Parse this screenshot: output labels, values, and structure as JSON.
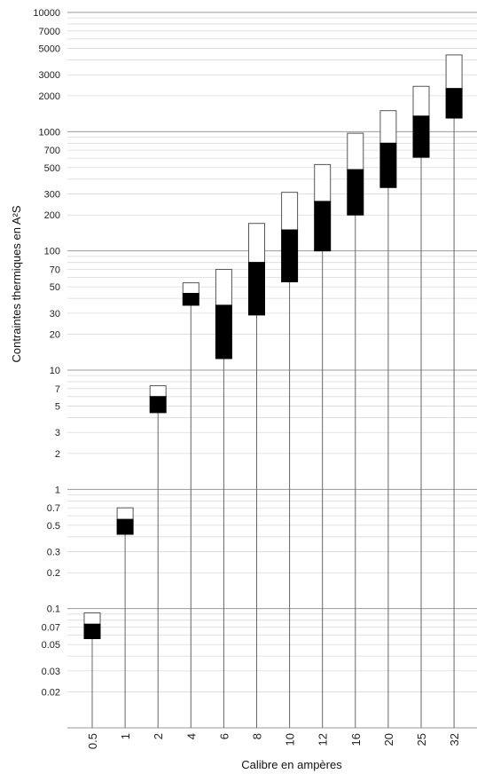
{
  "chart_data": {
    "type": "bar",
    "subtype": "floating-range-stacked",
    "xlabel": "Calibre en ampères",
    "ylabel": "Contraintes thermiques en A²S",
    "yscale": "log",
    "ylim": [
      0.01,
      10000
    ],
    "yticks": [
      {
        "value": 10000,
        "label": "10000"
      },
      {
        "value": 7000,
        "label": "7000"
      },
      {
        "value": 5000,
        "label": "5000"
      },
      {
        "value": 3000,
        "label": "3000"
      },
      {
        "value": 2000,
        "label": "2000"
      },
      {
        "value": 1000,
        "label": "1000"
      },
      {
        "value": 700,
        "label": "700"
      },
      {
        "value": 500,
        "label": "500"
      },
      {
        "value": 300,
        "label": "300"
      },
      {
        "value": 200,
        "label": "200"
      },
      {
        "value": 100,
        "label": "100"
      },
      {
        "value": 70,
        "label": "70"
      },
      {
        "value": 50,
        "label": "50"
      },
      {
        "value": 30,
        "label": "30"
      },
      {
        "value": 20,
        "label": "20"
      },
      {
        "value": 10,
        "label": "10"
      },
      {
        "value": 7,
        "label": "7"
      },
      {
        "value": 5,
        "label": "5"
      },
      {
        "value": 3,
        "label": "3"
      },
      {
        "value": 2,
        "label": "2"
      },
      {
        "value": 1,
        "label": "1"
      },
      {
        "value": 0.7,
        "label": "0.7"
      },
      {
        "value": 0.5,
        "label": "0.5"
      },
      {
        "value": 0.3,
        "label": "0.3"
      },
      {
        "value": 0.2,
        "label": "0.2"
      },
      {
        "value": 0.1,
        "label": "0.1"
      },
      {
        "value": 0.07,
        "label": "0.07"
      },
      {
        "value": 0.05,
        "label": "0.05"
      },
      {
        "value": 0.03,
        "label": "0.03"
      },
      {
        "value": 0.02,
        "label": "0.02"
      }
    ],
    "categories": [
      "0.5",
      "1",
      "2",
      "4",
      "6",
      "8",
      "10",
      "12",
      "16",
      "20",
      "25",
      "32"
    ],
    "series": [
      {
        "values_low": [
          0.056,
          0.42,
          4.4,
          35,
          12.5,
          29,
          55,
          100,
          200,
          340,
          610,
          1300
        ]
      },
      {
        "values_mid": [
          0.074,
          0.56,
          6.0,
          44,
          35,
          80,
          150,
          260,
          480,
          800,
          1350,
          2300
        ]
      },
      {
        "values_high": [
          0.092,
          0.7,
          7.4,
          54,
          70,
          170,
          310,
          530,
          970,
          1500,
          2400,
          4400
        ]
      }
    ],
    "grid": true,
    "colors": {
      "lower_segment": "#000000",
      "upper_segment": "#ffffff",
      "stem": "#666666",
      "grid_major": "#9a9a9a",
      "grid_minor": "#d9d9d9"
    }
  }
}
